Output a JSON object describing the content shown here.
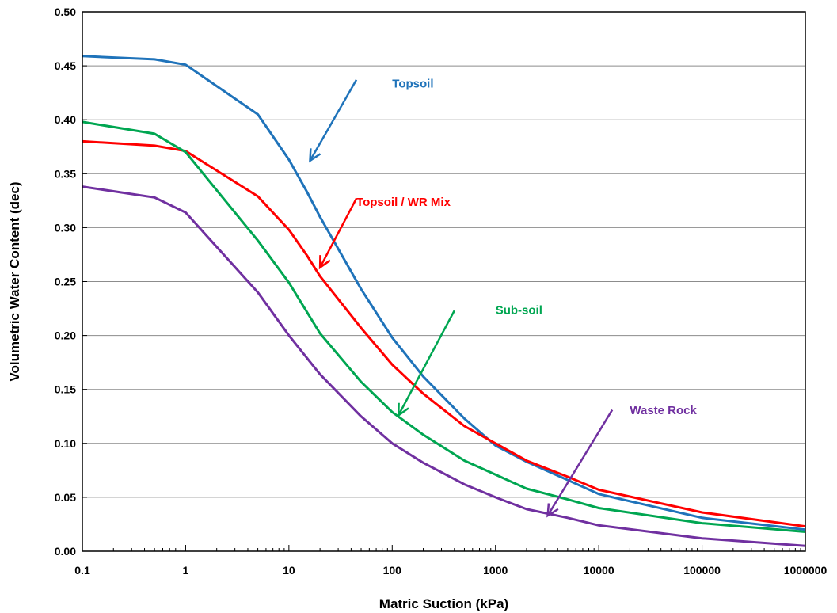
{
  "chart_data": {
    "type": "line",
    "xlabel": "Matric Suction (kPa)",
    "ylabel": "Volumetric Water Content (dec)",
    "xscale": "log",
    "xlim": [
      0.1,
      1000000
    ],
    "ylim": [
      0,
      0.5
    ],
    "grid": "horizontal",
    "x_ticks": [
      "0.1",
      "1",
      "10",
      "100",
      "1000",
      "10000",
      "100000",
      "1000000"
    ],
    "y_ticks": [
      "0.00",
      "0.05",
      "0.10",
      "0.15",
      "0.20",
      "0.25",
      "0.30",
      "0.35",
      "0.40",
      "0.45",
      "0.50"
    ],
    "series": [
      {
        "name": "Topsoil",
        "color": "#1F73BA",
        "points": [
          [
            0.1,
            0.459
          ],
          [
            0.5,
            0.456
          ],
          [
            1,
            0.451
          ],
          [
            5,
            0.405
          ],
          [
            10,
            0.363
          ],
          [
            15,
            0.333
          ],
          [
            20,
            0.31
          ],
          [
            50,
            0.243
          ],
          [
            100,
            0.198
          ],
          [
            200,
            0.162
          ],
          [
            500,
            0.123
          ],
          [
            1000,
            0.098
          ],
          [
            2000,
            0.083
          ],
          [
            5000,
            0.066
          ],
          [
            10000,
            0.053
          ],
          [
            100000,
            0.031
          ],
          [
            1000000,
            0.02
          ]
        ]
      },
      {
        "name": "Topsoil / WR Mix",
        "color": "#FF0000",
        "points": [
          [
            0.1,
            0.38
          ],
          [
            0.5,
            0.376
          ],
          [
            1,
            0.371
          ],
          [
            5,
            0.329
          ],
          [
            10,
            0.298
          ],
          [
            15,
            0.274
          ],
          [
            20,
            0.255
          ],
          [
            50,
            0.207
          ],
          [
            100,
            0.173
          ],
          [
            200,
            0.146
          ],
          [
            500,
            0.116
          ],
          [
            1000,
            0.1
          ],
          [
            2000,
            0.084
          ],
          [
            5000,
            0.069
          ],
          [
            10000,
            0.057
          ],
          [
            100000,
            0.036
          ],
          [
            1000000,
            0.023
          ]
        ]
      },
      {
        "name": "Sub-soil",
        "color": "#00A651",
        "points": [
          [
            0.1,
            0.398
          ],
          [
            0.5,
            0.387
          ],
          [
            1,
            0.37
          ],
          [
            5,
            0.288
          ],
          [
            10,
            0.249
          ],
          [
            20,
            0.202
          ],
          [
            50,
            0.157
          ],
          [
            100,
            0.129
          ],
          [
            200,
            0.108
          ],
          [
            500,
            0.084
          ],
          [
            1000,
            0.071
          ],
          [
            2000,
            0.058
          ],
          [
            5000,
            0.048
          ],
          [
            10000,
            0.04
          ],
          [
            100000,
            0.026
          ],
          [
            1000000,
            0.018
          ]
        ]
      },
      {
        "name": "Waste Rock",
        "color": "#7030A0",
        "points": [
          [
            0.1,
            0.338
          ],
          [
            0.5,
            0.328
          ],
          [
            1,
            0.314
          ],
          [
            5,
            0.24
          ],
          [
            10,
            0.2
          ],
          [
            20,
            0.164
          ],
          [
            50,
            0.125
          ],
          [
            100,
            0.1
          ],
          [
            200,
            0.082
          ],
          [
            500,
            0.062
          ],
          [
            1000,
            0.05
          ],
          [
            2000,
            0.039
          ],
          [
            5000,
            0.031
          ],
          [
            10000,
            0.024
          ],
          [
            100000,
            0.012
          ],
          [
            1000000,
            0.005
          ]
        ]
      }
    ],
    "annotations": [
      {
        "text": "Topsoil",
        "color": "#1F73BA",
        "text_at": [
          100,
          0.43
        ],
        "arrow_from": [
          45,
          0.437
        ],
        "arrow_to": [
          16,
          0.362
        ]
      },
      {
        "text": "Topsoil / WR Mix",
        "color": "#FF0000",
        "text_at": [
          45,
          0.32
        ],
        "arrow_from": [
          45,
          0.327
        ],
        "arrow_to": [
          20,
          0.263
        ]
      },
      {
        "text": "Sub-soil",
        "color": "#00A651",
        "text_at": [
          1000,
          0.22
        ],
        "arrow_from": [
          400,
          0.223
        ],
        "arrow_to": [
          115,
          0.126
        ]
      },
      {
        "text": "Waste Rock",
        "color": "#7030A0",
        "text_at": [
          20000,
          0.127
        ],
        "arrow_from": [
          13500,
          0.131
        ],
        "arrow_to": [
          3200,
          0.033
        ]
      }
    ]
  }
}
